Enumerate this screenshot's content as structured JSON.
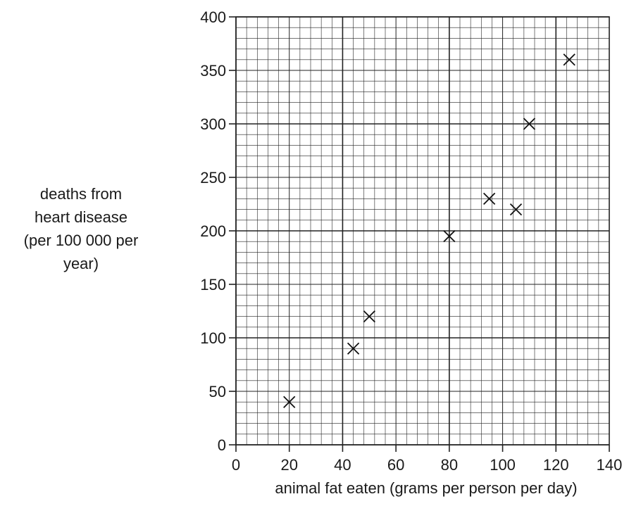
{
  "chart_data": {
    "type": "scatter",
    "title": "",
    "xlabel": "animal fat eaten (grams per person per day)",
    "ylabel_lines": [
      "deaths from",
      "heart disease",
      "(per 100 000 per",
      "year)"
    ],
    "xlim": [
      0,
      140
    ],
    "ylim": [
      0,
      400
    ],
    "x_ticks": [
      0,
      20,
      40,
      60,
      80,
      100,
      120,
      140
    ],
    "y_ticks": [
      0,
      50,
      100,
      150,
      200,
      250,
      300,
      350,
      400
    ],
    "x_tick_labels": [
      "0",
      "20",
      "40",
      "60",
      "80",
      "100",
      "120",
      "140"
    ],
    "y_tick_labels": [
      "0",
      "50",
      "100",
      "150",
      "200",
      "250",
      "300",
      "350",
      "400"
    ],
    "grid": {
      "minor_x_step": 4,
      "minor_y_step": 10,
      "major_x_step": 40,
      "major_y_step": 100
    },
    "marker": "cross",
    "points": [
      {
        "x": 20,
        "y": 40
      },
      {
        "x": 44,
        "y": 90
      },
      {
        "x": 50,
        "y": 120
      },
      {
        "x": 80,
        "y": 195
      },
      {
        "x": 95,
        "y": 230
      },
      {
        "x": 105,
        "y": 220
      },
      {
        "x": 110,
        "y": 300
      },
      {
        "x": 125,
        "y": 360
      }
    ]
  }
}
